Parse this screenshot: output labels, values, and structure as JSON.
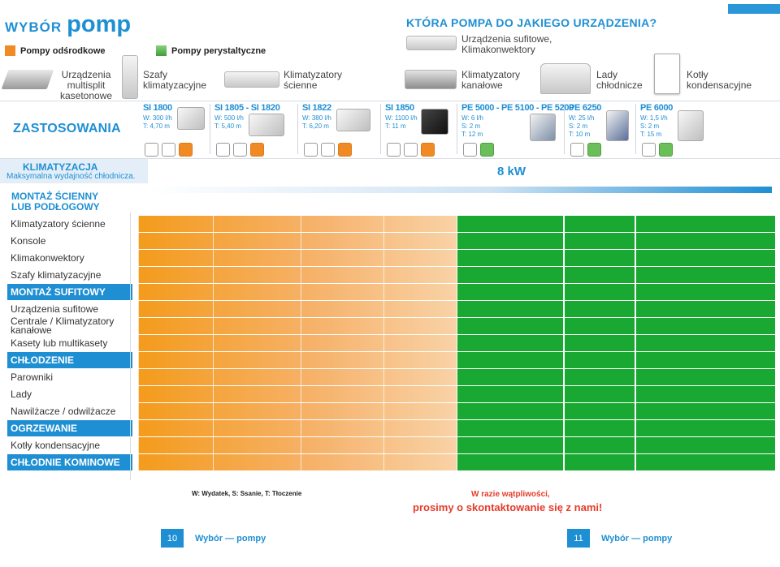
{
  "header": {
    "brand_word": "WYBÓR",
    "brand_accent": "pomp",
    "legend_centrifugal": "Pompy odśrodkowe",
    "legend_peristaltic": "Pompy perystaltyczne",
    "question": "KTÓRA POMPA DO JAKIEGO URZĄDZENIA?",
    "ceiling_label_1": "Urządzenia sufitowe,",
    "ceiling_label_2": "Klimakonwektory"
  },
  "devices": [
    {
      "l1": "Urządzenia",
      "l2": "multisplit",
      "l3": "kasetonowe"
    },
    {
      "l1": "Szafy",
      "l2": "klimatyzacyjne",
      "l3": ""
    },
    {
      "l1": "Klimatyzatory",
      "l2": "ścienne",
      "l3": ""
    },
    {
      "l1": "Klimatyzatory",
      "l2": "kanałowe",
      "l3": ""
    },
    {
      "l1": "Lady",
      "l2": "chłodnicze",
      "l3": ""
    },
    {
      "l1": "Kotły",
      "l2": "kondensacyjne",
      "l3": ""
    }
  ],
  "zastosowania": "ZASTOSOWANIA",
  "pumps": [
    {
      "name": "SI 1800",
      "w": "W: 300 l/h",
      "s": "",
      "t": "T: 4,70 m"
    },
    {
      "name": "SI 1805 - SI 1820",
      "w": "W: 500 l/h",
      "s": "",
      "t": "T: 5,40 m"
    },
    {
      "name": "SI 1822",
      "w": "W: 380 l/h",
      "s": "",
      "t": "T: 6,20 m"
    },
    {
      "name": "SI 1850",
      "w": "W: 1100 l/h",
      "s": "",
      "t": "T: 11 m"
    },
    {
      "name": "PE 5000 - PE 5100 - PE 5200",
      "w": "W: 6 l/h",
      "s": "S: 2 m",
      "t": "T: 12 m"
    },
    {
      "name": "PE 6250",
      "w": "W: 25 l/h",
      "s": "S: 2 m",
      "t": "T: 10 m"
    },
    {
      "name": "PE 6000",
      "w": "W: 1,5 l/h",
      "s": "S: 2 m",
      "t": "T: 15 m"
    }
  ],
  "klimatyzacja": {
    "title": "KLIMATYZACJA",
    "subtitle": "Maksymalna wydajność chłodnicza.",
    "power": "8 kW"
  },
  "montaz_title_1": "MONTAŻ ŚCIENNY",
  "montaz_title_2": "LUB PODŁOGOWY",
  "rows": [
    {
      "label": "Klimatyzatory ścienne",
      "section": false
    },
    {
      "label": "Konsole",
      "section": false
    },
    {
      "label": "Klimakonwektory",
      "section": false
    },
    {
      "label": "Szafy klimatyzacyjne",
      "section": false
    },
    {
      "label": "MONTAŻ SUFITOWY",
      "section": true
    },
    {
      "label": "Urządzenia sufitowe",
      "section": false
    },
    {
      "label": "Centrale / Klimatyzatory",
      "label2": "kanałowe",
      "section": false
    },
    {
      "label": "Kasety lub multikasety",
      "section": false
    },
    {
      "label": "CHŁODZENIE",
      "section": true
    },
    {
      "label": "Parowniki",
      "section": false
    },
    {
      "label": "Lady",
      "section": false
    },
    {
      "label": "Nawilżacze / odwilżacze",
      "section": false
    },
    {
      "label": "OGRZEWANIE",
      "section": true
    },
    {
      "label": "Kotły kondensacyjne",
      "section": false
    },
    {
      "label": "CHŁODNIE KOMINOWE",
      "section": true
    }
  ],
  "footer": {
    "legend": "W: Wydatek, S: Ssanie, T: Tłoczenie",
    "doubt_1": "W razie wątpliwości,",
    "doubt_2": "prosimy o skontaktowanie się z nami!",
    "page_left": "10",
    "page_right": "11",
    "page_title": "Wybór — pompy"
  },
  "colors": {
    "accent_blue": "#1f8fd3",
    "orange": "#f49b1c",
    "green": "#19a832",
    "legend_centrifugal": "#f08a24",
    "legend_peristaltic": "#4caf50"
  }
}
